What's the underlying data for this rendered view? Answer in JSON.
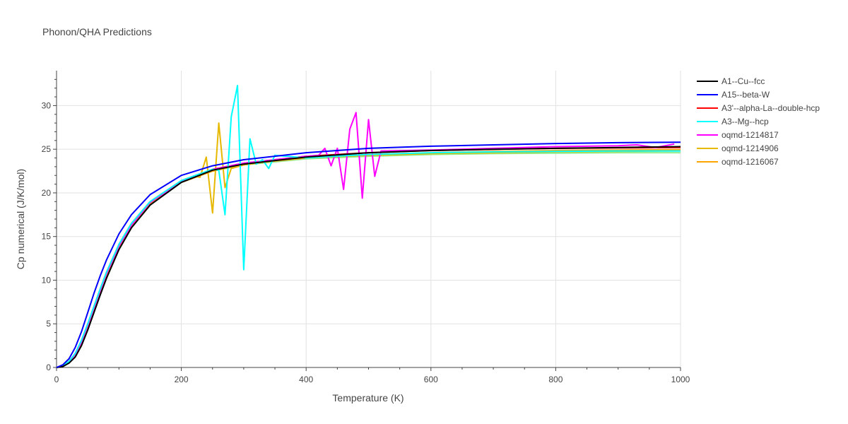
{
  "chart_data": {
    "type": "line",
    "title": "Phonon/QHA Predictions",
    "xlabel": "Temperature (K)",
    "ylabel": "Cp numerical (J/K/mol)",
    "xlim": [
      0,
      1000
    ],
    "ylim": [
      0,
      34
    ],
    "xticks": [
      0,
      200,
      400,
      600,
      800,
      1000
    ],
    "yticks": [
      0,
      5,
      10,
      15,
      20,
      25,
      30
    ],
    "grid": true,
    "legend_position": "top-right",
    "series": [
      {
        "name": "A1--Cu--fcc",
        "color": "#000000",
        "x": [
          0,
          10,
          20,
          30,
          40,
          50,
          60,
          70,
          80,
          100,
          120,
          150,
          200,
          250,
          300,
          400,
          500,
          600,
          700,
          800,
          900,
          1000
        ],
        "y": [
          0,
          0.1,
          0.5,
          1.2,
          2.5,
          4.3,
          6.3,
          8.3,
          10.2,
          13.5,
          16.0,
          18.6,
          21.2,
          22.6,
          23.3,
          24.1,
          24.6,
          24.85,
          25.0,
          25.1,
          25.2,
          25.3
        ]
      },
      {
        "name": "A15--beta-W",
        "color": "#0000ff",
        "x": [
          0,
          10,
          20,
          30,
          40,
          50,
          60,
          70,
          80,
          100,
          120,
          150,
          200,
          250,
          300,
          400,
          500,
          600,
          700,
          800,
          900,
          1000
        ],
        "y": [
          0,
          0.3,
          1.0,
          2.3,
          4.1,
          6.3,
          8.5,
          10.5,
          12.3,
          15.3,
          17.5,
          19.8,
          22.0,
          23.1,
          23.8,
          24.6,
          25.1,
          25.35,
          25.5,
          25.65,
          25.75,
          25.8
        ]
      },
      {
        "name": "A3'--alpha-La--double-hcp",
        "color": "#ff0000",
        "x": [
          0,
          10,
          20,
          30,
          40,
          50,
          60,
          70,
          80,
          100,
          120,
          150,
          200,
          250,
          300,
          400,
          500,
          600,
          700,
          800,
          900,
          1000
        ],
        "y": [
          0,
          0.2,
          0.7,
          1.6,
          3.1,
          5.0,
          7.0,
          9.0,
          10.9,
          14.1,
          16.5,
          19.0,
          21.4,
          22.7,
          23.4,
          24.2,
          24.6,
          24.85,
          25.0,
          25.1,
          25.15,
          25.2
        ]
      },
      {
        "name": "A3--Mg--hcp",
        "color": "#00ffff",
        "x": [
          0,
          10,
          20,
          30,
          40,
          50,
          60,
          70,
          80,
          100,
          120,
          150,
          200,
          230,
          250,
          260,
          270,
          280,
          290,
          300,
          310,
          320,
          330,
          340,
          350,
          400,
          500,
          600,
          700,
          800,
          900,
          1000
        ],
        "y": [
          0,
          0.2,
          0.7,
          1.6,
          3.1,
          5.0,
          7.0,
          9.0,
          10.9,
          14.1,
          16.5,
          19.0,
          21.4,
          22.2,
          22.7,
          22.6,
          17.5,
          28.7,
          32.3,
          11.2,
          26.2,
          23.3,
          23.8,
          22.8,
          24.3,
          24.0,
          24.4,
          24.6,
          24.7,
          24.75,
          24.8,
          24.8
        ]
      },
      {
        "name": "oqmd-1214817",
        "color": "#ff00ff",
        "x": [
          0,
          10,
          20,
          30,
          40,
          50,
          60,
          70,
          80,
          100,
          120,
          150,
          200,
          250,
          300,
          400,
          420,
          430,
          440,
          450,
          460,
          470,
          480,
          490,
          500,
          510,
          520,
          600,
          700,
          800,
          900,
          930,
          960,
          990
        ],
        "y": [
          0,
          0.2,
          0.6,
          1.5,
          2.9,
          4.8,
          6.8,
          8.8,
          10.7,
          13.9,
          16.3,
          18.9,
          21.3,
          22.7,
          23.4,
          24.2,
          24.3,
          25.1,
          23.1,
          25.1,
          20.4,
          27.3,
          29.2,
          19.4,
          28.4,
          21.9,
          24.8,
          24.9,
          25.1,
          25.3,
          25.4,
          25.5,
          25.2,
          25.6
        ]
      },
      {
        "name": "oqmd-1214906",
        "color": "#e6b800",
        "x": [
          0,
          10,
          20,
          30,
          40,
          50,
          60,
          70,
          80,
          100,
          120,
          150,
          200,
          220,
          230,
          240,
          250,
          260,
          270,
          280,
          290,
          300,
          350,
          400,
          500,
          600,
          700,
          800,
          900,
          1000
        ],
        "y": [
          0,
          0.2,
          0.6,
          1.5,
          2.9,
          4.8,
          6.8,
          8.8,
          10.7,
          13.9,
          16.3,
          18.9,
          21.3,
          21.9,
          21.8,
          24.1,
          17.7,
          28.0,
          20.6,
          22.8,
          23.0,
          23.2,
          23.7,
          24.0,
          24.3,
          24.5,
          24.6,
          24.7,
          24.75,
          24.8
        ]
      },
      {
        "name": "oqmd-1216067",
        "color": "#ffa500",
        "x": [
          0,
          10,
          20,
          30,
          40,
          50,
          60,
          70,
          80,
          100,
          120,
          150,
          200,
          250,
          300,
          400,
          500,
          600,
          700,
          800,
          900,
          1000
        ],
        "y": [
          0,
          0.2,
          0.6,
          1.4,
          2.8,
          4.6,
          6.6,
          8.6,
          10.5,
          13.8,
          16.2,
          18.8,
          21.2,
          22.5,
          23.3,
          24.0,
          24.4,
          24.6,
          24.75,
          24.85,
          24.9,
          24.95
        ]
      }
    ],
    "extra_lines": [
      {
        "color": "#90ee90",
        "x": [
          0,
          10,
          20,
          30,
          40,
          50,
          60,
          70,
          80,
          100,
          120,
          150,
          200,
          250,
          300,
          400,
          500,
          600,
          700,
          800,
          900,
          1000
        ],
        "y": [
          0,
          0.2,
          0.6,
          1.4,
          2.8,
          4.6,
          6.6,
          8.6,
          10.5,
          13.8,
          16.2,
          18.8,
          21.2,
          22.5,
          23.2,
          23.9,
          24.2,
          24.4,
          24.5,
          24.55,
          24.6,
          24.6
        ]
      }
    ]
  }
}
